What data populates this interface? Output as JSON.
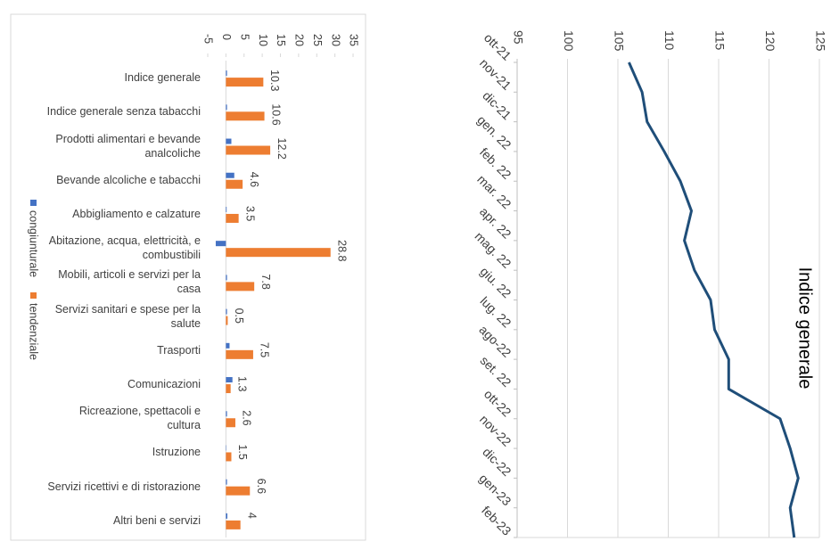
{
  "chart_data": [
    {
      "type": "bar",
      "orientation": "horizontal",
      "categories": [
        "Indice generale",
        "Indice generale senza tabacchi",
        "Prodotti alimentari e bevande analcoliche",
        "Bevande alcoliche e tabacchi",
        "Abbigliamento e calzature",
        "Abitazione, acqua, elettricità, e combustibili",
        "Mobili, articoli e servizi per la casa",
        "Servizi sanitari e spese per la salute",
        "Trasporti",
        "Comunicazioni",
        "Ricreazione, spettacoli e cultura",
        "Istruzione",
        "Servizi ricettivi e di ristorazione",
        "Altri beni e servizi"
      ],
      "series": [
        {
          "name": "congiunturale",
          "color": "#4472c4",
          "data_labels": false,
          "values": [
            0.3,
            0.3,
            1.5,
            2.3,
            0.2,
            -2.8,
            0.3,
            0.3,
            1.0,
            1.8,
            0.3,
            0.1,
            0.3,
            0.4
          ]
        },
        {
          "name": "tendenziale",
          "color": "#ed7d31",
          "data_labels": true,
          "values": [
            10.3,
            10.6,
            12.2,
            4.6,
            3.5,
            28.8,
            7.8,
            0.5,
            7.5,
            1.3,
            2.6,
            1.5,
            6.6,
            4
          ]
        }
      ],
      "xlim": [
        -5,
        35
      ],
      "xticks": [
        -5,
        0,
        5,
        10,
        15,
        20,
        25,
        30,
        35
      ],
      "grid": false,
      "legend": "left"
    },
    {
      "type": "line",
      "title": "Indice generale",
      "categories": [
        "ott-21",
        "nov-21",
        "dic-21",
        "gen. 22",
        "feb. 22",
        "mar. 22",
        "apr. 22",
        "mag. 22",
        "giu. 22",
        "lug. 22",
        "ago-22",
        "set. 22",
        "ott-22",
        "nov-22",
        "dic-22",
        "gen-23",
        "feb-23"
      ],
      "values": [
        106.1,
        107.4,
        107.9,
        109.6,
        111.2,
        112.3,
        111.6,
        112.6,
        114.2,
        114.6,
        116.0,
        116.0,
        121.1,
        122.1,
        122.9,
        122.1,
        122.5
      ],
      "color": "#1f4e79",
      "ylim": [
        95,
        125
      ],
      "yticks": [
        95,
        100,
        105,
        110,
        115,
        120,
        125
      ],
      "grid": true
    }
  ]
}
